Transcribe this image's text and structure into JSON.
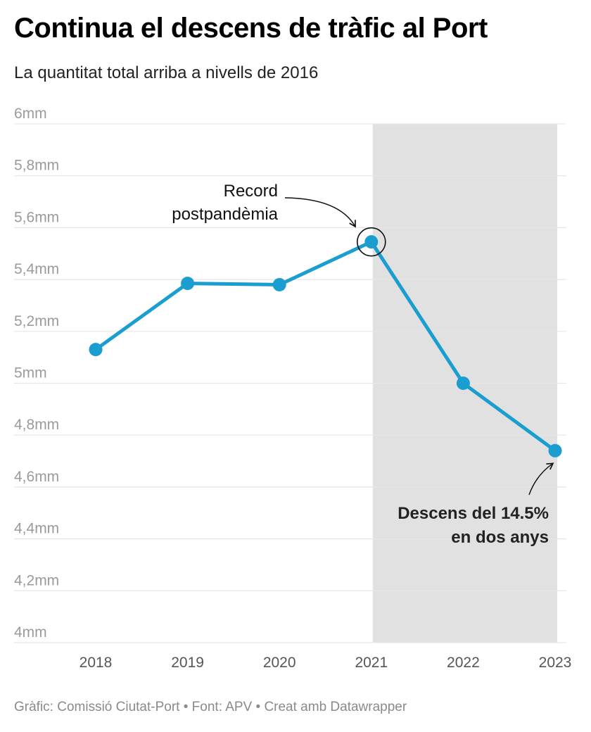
{
  "title": "Continua el descens de tràfic al Port",
  "subtitle": "La quantitat total arriba a nivells de 2016",
  "footer": {
    "credit": "Gràfic: Comissió Ciutat-Port",
    "separator": "•",
    "source": "Font: APV",
    "made_with": "Creat amb Datawrapper"
  },
  "colors": {
    "line": "#1a9ecf",
    "highlight_band": "#e1e1e1",
    "grid": "#e6e6e6"
  },
  "chart_data": {
    "type": "line",
    "title": "Continua el descens de tràfic al Port",
    "subtitle": "La quantitat total arriba a nivells de 2016",
    "x": [
      "2018",
      "2019",
      "2020",
      "2021",
      "2022",
      "2023"
    ],
    "series": [
      {
        "values": [
          5.13,
          5.385,
          5.38,
          5.545,
          5.0,
          4.74
        ]
      }
    ],
    "ylim": [
      4,
      6
    ],
    "y_ticks": [
      {
        "value": 6,
        "label": "6mm"
      },
      {
        "value": 5.8,
        "label": "5,8mm"
      },
      {
        "value": 5.6,
        "label": "5,6mm"
      },
      {
        "value": 5.4,
        "label": "5,4mm"
      },
      {
        "value": 5.2,
        "label": "5,2mm"
      },
      {
        "value": 5,
        "label": "5mm"
      },
      {
        "value": 4.8,
        "label": "4,8mm"
      },
      {
        "value": 4.6,
        "label": "4,6mm"
      },
      {
        "value": 4.4,
        "label": "4,4mm"
      },
      {
        "value": 4.2,
        "label": "4,2mm"
      },
      {
        "value": 4,
        "label": "4mm"
      }
    ],
    "grid": true,
    "highlight_range": [
      "2021",
      "2023"
    ],
    "annotations": [
      {
        "x": "2021",
        "lines": [
          "Record",
          "postpandèmia"
        ],
        "bold": false
      },
      {
        "x": "2023",
        "lines": [
          "Descens del 14.5%",
          "en dos anys"
        ],
        "bold": true
      }
    ]
  }
}
